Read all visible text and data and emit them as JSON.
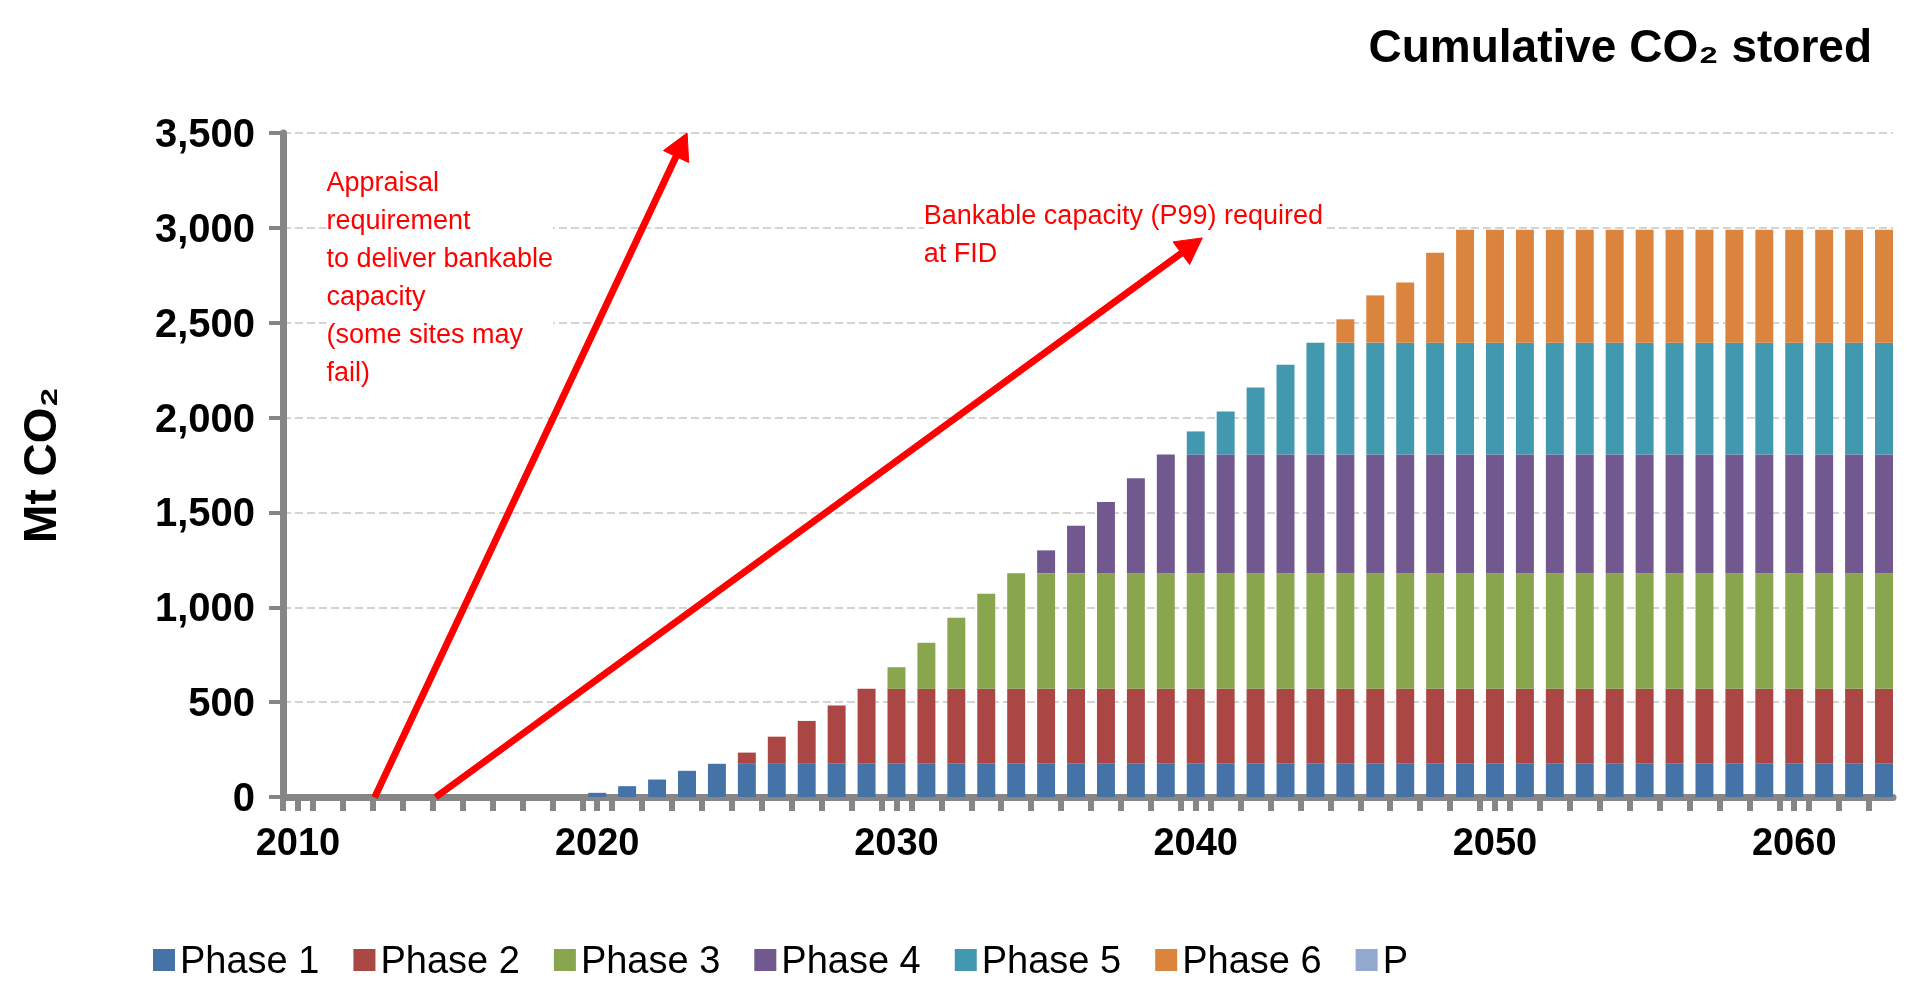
{
  "chart_data": {
    "type": "bar",
    "title": "Cumulative CO₂ stored",
    "ylabel": "Mt CO₂",
    "stacked": true,
    "grid": "y",
    "legend": "bottom",
    "x": [
      2020,
      2021,
      2022,
      2023,
      2024,
      2025,
      2026,
      2027,
      2028,
      2029,
      2030,
      2031,
      2032,
      2033,
      2034,
      2035,
      2036,
      2037,
      2038,
      2039,
      2040,
      2041,
      2042,
      2043,
      2044,
      2045,
      2046,
      2047,
      2048,
      2049,
      2050,
      2051,
      2052,
      2053,
      2054,
      2055,
      2056,
      2057,
      2058,
      2059,
      2060,
      2061,
      2062,
      2063
    ],
    "xlim": [
      2009.5,
      2063.3
    ],
    "xticks": [
      {
        "value": 2009.5,
        "label": null
      },
      2010,
      {
        "value": 2010.5,
        "label": null
      },
      {
        "value": 2011.5,
        "label": null
      },
      {
        "value": 2012.5,
        "label": null
      },
      {
        "value": 2013.5,
        "label": null
      },
      {
        "value": 2014.5,
        "label": null
      },
      {
        "value": 2015.5,
        "label": null
      },
      {
        "value": 2016.5,
        "label": null
      },
      {
        "value": 2017.5,
        "label": null
      },
      {
        "value": 2018.5,
        "label": null
      },
      {
        "value": 2019.5,
        "label": null
      },
      2020,
      {
        "value": 2020.5,
        "label": null
      },
      {
        "value": 2021.5,
        "label": null
      },
      {
        "value": 2022.5,
        "label": null
      },
      {
        "value": 2023.5,
        "label": null
      },
      {
        "value": 2024.5,
        "label": null
      },
      {
        "value": 2025.5,
        "label": null
      },
      {
        "value": 2026.5,
        "label": null
      },
      {
        "value": 2027.5,
        "label": null
      },
      {
        "value": 2028.5,
        "label": null
      },
      {
        "value": 2029.5,
        "label": null
      },
      2030,
      {
        "value": 2030.5,
        "label": null
      },
      {
        "value": 2031.5,
        "label": null
      },
      {
        "value": 2032.5,
        "label": null
      },
      {
        "value": 2033.5,
        "label": null
      },
      {
        "value": 2034.5,
        "label": null
      },
      {
        "value": 2035.5,
        "label": null
      },
      {
        "value": 2036.5,
        "label": null
      },
      {
        "value": 2037.5,
        "label": null
      },
      {
        "value": 2038.5,
        "label": null
      },
      {
        "value": 2039.5,
        "label": null
      },
      2040,
      {
        "value": 2040.5,
        "label": null
      },
      {
        "value": 2041.5,
        "label": null
      },
      {
        "value": 2042.5,
        "label": null
      },
      {
        "value": 2043.5,
        "label": null
      },
      {
        "value": 2044.5,
        "label": null
      },
      {
        "value": 2045.5,
        "label": null
      },
      {
        "value": 2046.5,
        "label": null
      },
      {
        "value": 2047.5,
        "label": null
      },
      {
        "value": 2048.5,
        "label": null
      },
      {
        "value": 2049.5,
        "label": null
      },
      2050,
      {
        "value": 2050.5,
        "label": null
      },
      {
        "value": 2051.5,
        "label": null
      },
      {
        "value": 2052.5,
        "label": null
      },
      {
        "value": 2053.5,
        "label": null
      },
      {
        "value": 2054.5,
        "label": null
      },
      {
        "value": 2055.5,
        "label": null
      },
      {
        "value": 2056.5,
        "label": null
      },
      {
        "value": 2057.5,
        "label": null
      },
      {
        "value": 2058.5,
        "label": null
      },
      {
        "value": 2059.5,
        "label": null
      },
      2060,
      {
        "value": 2060.5,
        "label": null
      },
      {
        "value": 2061.5,
        "label": null
      },
      {
        "value": 2062.5,
        "label": null
      }
    ],
    "ylim": [
      0,
      3500
    ],
    "yticks": [
      0,
      500,
      {
        "value": 1000,
        "label": "1,000"
      },
      {
        "value": 1500,
        "label": "1,500"
      },
      {
        "value": 2000,
        "label": "2,000"
      },
      {
        "value": 2500,
        "label": "2,500"
      },
      {
        "value": 3000,
        "label": "3,000"
      },
      {
        "value": 3500,
        "label": "3,500"
      }
    ],
    "series": [
      {
        "name": "Phase 1",
        "color": "#4572a7",
        "values": [
          22,
          57,
          92,
          138,
          175,
          175,
          175,
          175,
          175,
          175,
          175,
          175,
          175,
          175,
          175,
          175,
          175,
          175,
          175,
          175,
          175,
          175,
          175,
          175,
          175,
          175,
          175,
          175,
          175,
          175,
          175,
          175,
          175,
          175,
          175,
          175,
          175,
          175,
          175,
          175,
          175,
          175,
          175,
          175
        ]
      },
      {
        "name": "Phase 2",
        "color": "#aa4643",
        "values": [
          null,
          null,
          null,
          null,
          null,
          59,
          143,
          226,
          307,
          395,
          395,
          395,
          395,
          395,
          395,
          395,
          395,
          395,
          395,
          395,
          395,
          395,
          395,
          395,
          395,
          395,
          395,
          395,
          395,
          395,
          395,
          395,
          395,
          395,
          395,
          395,
          395,
          395,
          395,
          395,
          395,
          395,
          395,
          395
        ]
      },
      {
        "name": "Phase 3",
        "color": "#89a54e",
        "values": [
          null,
          null,
          null,
          null,
          null,
          null,
          null,
          null,
          null,
          null,
          114,
          243,
          375,
          501,
          610,
          610,
          610,
          610,
          610,
          610,
          610,
          610,
          610,
          610,
          610,
          610,
          610,
          610,
          610,
          610,
          610,
          610,
          610,
          610,
          610,
          610,
          610,
          610,
          610,
          610,
          610,
          610,
          610,
          610
        ]
      },
      {
        "name": "Phase 4",
        "color": "#71588f",
        "values": [
          null,
          null,
          null,
          null,
          null,
          null,
          null,
          null,
          null,
          null,
          null,
          null,
          null,
          null,
          null,
          120,
          250,
          375,
          500,
          625,
          625,
          625,
          625,
          625,
          625,
          625,
          625,
          625,
          625,
          625,
          625,
          625,
          625,
          625,
          625,
          625,
          625,
          625,
          625,
          625,
          625,
          625,
          625,
          625
        ]
      },
      {
        "name": "Phase 5",
        "color": "#4198af",
        "values": [
          null,
          null,
          null,
          null,
          null,
          null,
          null,
          null,
          null,
          null,
          null,
          null,
          null,
          null,
          null,
          null,
          null,
          null,
          null,
          null,
          122,
          227,
          353,
          473,
          590,
          590,
          590,
          590,
          590,
          590,
          590,
          590,
          590,
          590,
          590,
          590,
          590,
          590,
          590,
          590,
          590,
          590,
          590,
          590
        ]
      },
      {
        "name": "Phase 6",
        "color": "#db843d",
        "values": [
          null,
          null,
          null,
          null,
          null,
          null,
          null,
          null,
          null,
          null,
          null,
          null,
          null,
          null,
          null,
          null,
          null,
          null,
          null,
          null,
          null,
          null,
          null,
          null,
          null,
          123,
          249,
          317,
          474,
          595,
          595,
          595,
          595,
          595,
          595,
          595,
          595,
          595,
          595,
          595,
          595,
          595,
          595,
          595
        ]
      },
      {
        "name": "P",
        "color": "#93a9cf",
        "values": [
          null,
          null,
          null,
          null,
          null,
          null,
          null,
          null,
          null,
          null,
          null,
          null,
          null,
          null,
          null,
          null,
          null,
          null,
          null,
          null,
          null,
          null,
          null,
          null,
          null,
          null,
          null,
          null,
          null,
          null,
          null,
          null,
          null,
          null,
          null,
          null,
          null,
          null,
          null,
          null,
          null,
          null,
          null,
          null
        ]
      }
    ],
    "annotations": [
      "Appraisal\nrequirement\nto deliver bankable\ncapacity\n(some sites may\nfail)",
      "Bankable capacity (P99) required\nat FID"
    ]
  }
}
